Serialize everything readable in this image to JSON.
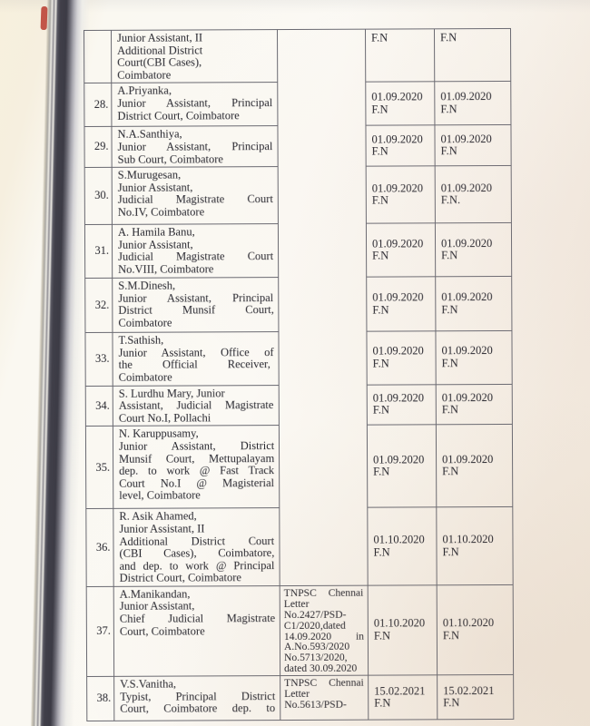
{
  "page": {
    "kind": "scanned-court-order-table",
    "accent_mark_color": "#b8392e",
    "rows": [
      {
        "sno": "",
        "name": "Junior Assistant, II\nAdditional District\nCourt(CBI Cases),\nCoimbatore",
        "letter": "",
        "date1": "F.N",
        "date2": "F.N"
      },
      {
        "sno": "28.",
        "name": "A.Priyanka,\nJunior Assistant, Principal\nDistrict Court, Coimbatore",
        "letter": "",
        "date1": "01.09.2020\nF.N",
        "date2": "01.09.2020\nF.N"
      },
      {
        "sno": "29.",
        "name": "N.A.Santhiya,\nJunior Assistant, Principal\nSub Court, Coimbatore",
        "letter": "",
        "date1": "01.09.2020\nF.N",
        "date2": "01.09.2020\nF.N"
      },
      {
        "sno": "30.",
        "name": "S.Murugesan,\nJunior Assistant,\nJudicial Magistrate Court\nNo.IV, Coimbatore",
        "letter": "",
        "date1": "01.09.2020\nF.N",
        "date2": "01.09.2020\nF.N."
      },
      {
        "sno": "31.",
        "name": "A. Hamila Banu,\nJunior Assistant,\nJudicial Magistrate Court\nNo.VIII, Coimbatore",
        "letter": "",
        "date1": "01.09.2020\nF.N",
        "date2": "01.09.2020\nF.N"
      },
      {
        "sno": "32.",
        "name": "S.M.Dinesh,\nJunior Assistant, Principal\nDistrict Munsif Court,\nCoimbatore",
        "letter": "",
        "date1": "01.09.2020\nF.N",
        "date2": "01.09.2020\nF.N"
      },
      {
        "sno": "33.",
        "name": "T.Sathish,\nJunior Assistant, Office of\nthe Official Receiver,\nCoimbatore",
        "letter": "",
        "date1": "01.09.2020\nF.N",
        "date2": "01.09.2020\nF.N"
      },
      {
        "sno": "34.",
        "name": "S. Lurdhu Mary, Junior\nAssistant, Judicial Magistrate\nCourt No.I, Pollachi",
        "letter": "",
        "date1": "01.09.2020\nF.N",
        "date2": "01.09.2020\nF.N"
      },
      {
        "sno": "35.",
        "name": "N. Karuppusamy,\nJunior Assistant, District\nMunsif Court, Mettupalayam\ndep. to work @ Fast Track\nCourt No.I @ Magisterial\nlevel, Coimbatore",
        "letter": "",
        "date1": "01.09.2020\nF.N",
        "date2": "01.09.2020\nF.N"
      },
      {
        "sno": "36.",
        "name": "R. Asik Ahamed,\nJunior Assistant, II\nAdditional District Court\n(CBI Cases), Coimbatore,\nand dep. to work @ Principal\nDistrict Court, Coimbatore",
        "letter": "",
        "date1": "01.10.2020\nF.N",
        "date2": "01.10.2020\nF.N"
      },
      {
        "sno": "37.",
        "name": "A.Manikandan,\nJunior Assistant,\nChief Judicial Magistrate\nCourt, Coimbatore",
        "letter": "TNPSC Chennai\nLetter\nNo.2427/PSD-\nC1/2020,dated\n14.09.2020 in\nA.No.593/2020\nNo.5713/2020,\ndated 30.09.2020",
        "date1": "01.10.2020\nF.N",
        "date2": "01.10.2020\nF.N"
      },
      {
        "sno": "38.",
        "name": "V.S.Vanitha,\nTypist, Principal District\nCourt, Coimbatore dep. to",
        "letter": "TNPSC Chennai\nLetter\nNo.5613/PSD-",
        "date1": "15.02.2021\nF.N",
        "date2": "15.02.2021\nF.N"
      }
    ]
  }
}
